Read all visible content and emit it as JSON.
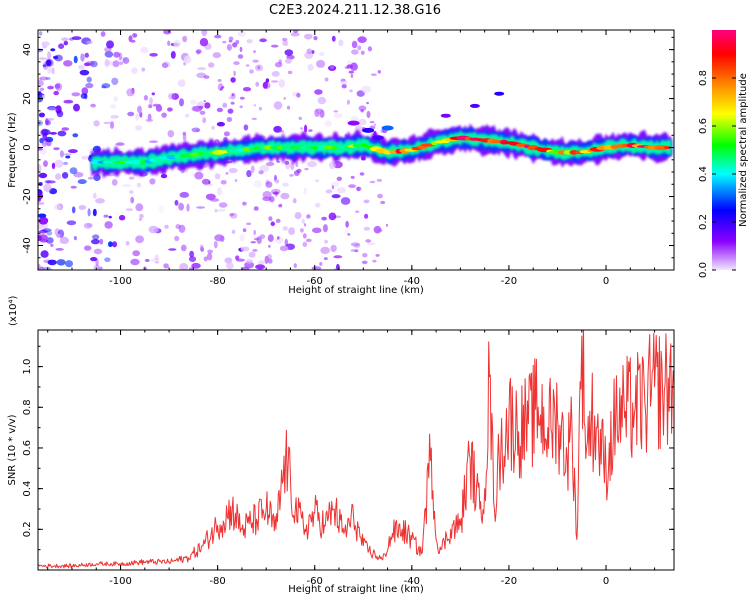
{
  "figure": {
    "title": "C2E3.2024.211.12.38.G16"
  },
  "chart_data": [
    {
      "type": "heatmap",
      "title": "C2E3.2024.211.12.38.G16",
      "xlabel": "Height of straight line (km)",
      "ylabel": "Frequency (Hz)",
      "xlim": [
        -117,
        14
      ],
      "ylim": [
        -50,
        48
      ],
      "x_ticks": [
        -100,
        -80,
        -60,
        -40,
        -20,
        0
      ],
      "y_ticks": [
        -40,
        -20,
        0,
        20,
        40
      ],
      "colorbar": {
        "label": "Normalized spectral amplitude",
        "range": [
          0,
          1
        ],
        "ticks": [
          0.0,
          0.2,
          0.4,
          0.6,
          0.8
        ],
        "tick_labels": [
          "0.0",
          "0.2",
          "0.4",
          "0.6",
          "0.8"
        ],
        "colormap": [
          "#f2e6ff",
          "#8a00ff",
          "#0000ff",
          "#00ffff",
          "#00ff00",
          "#ffff00",
          "#ff8000",
          "#ff0000",
          "#ff0080"
        ]
      },
      "ridge": {
        "description_points_height_km": [
          -105,
          -100,
          -95,
          -90,
          -85,
          -80,
          -75,
          -70,
          -65,
          -60,
          -55,
          -50,
          -45,
          -40,
          -35,
          -30,
          -25,
          -20,
          -15,
          -10,
          -5,
          0,
          5,
          10,
          13
        ],
        "frequency_hz": [
          -6,
          -6,
          -6,
          -4,
          -3,
          -2,
          -1,
          0,
          0,
          0,
          0,
          1,
          -2,
          -1,
          2,
          4,
          3,
          2,
          0,
          -2,
          -2,
          0,
          1,
          0,
          0
        ],
        "amplitude": [
          0.4,
          0.5,
          0.45,
          0.4,
          0.5,
          0.6,
          0.5,
          0.55,
          0.5,
          0.45,
          0.55,
          0.6,
          0.85,
          0.8,
          0.75,
          0.9,
          0.85,
          0.9,
          0.95,
          0.7,
          0.8,
          0.9,
          0.85,
          0.95,
          0.9
        ]
      },
      "side_feature": {
        "height_km": [
          -33,
          -27,
          -22
        ],
        "frequency_hz": [
          13,
          17,
          22
        ]
      }
    },
    {
      "type": "line",
      "xlabel": "Height of straight line (km)",
      "ylabel": "SNR (10 * v/v)",
      "y_multiplier": "(x10⁴)",
      "xlim": [
        -117,
        14
      ],
      "ylim": [
        0,
        1.18
      ],
      "x_ticks": [
        -100,
        -80,
        -60,
        -40,
        -20,
        0
      ],
      "y_ticks": [
        0.2,
        0.4,
        0.6,
        0.8,
        1.0
      ],
      "y_tick_labels": [
        "0.2",
        "0.4",
        "0.6",
        "0.8",
        "1.0"
      ],
      "color": "#ee3333",
      "series": [
        {
          "x": [
            -117,
            -110,
            -105,
            -100,
            -95,
            -90,
            -86,
            -83,
            -80,
            -77,
            -75,
            -72,
            -70,
            -68,
            -66,
            -64,
            -62,
            -60,
            -58,
            -56,
            -54,
            -52,
            -50,
            -48,
            -46,
            -44,
            -42,
            -40,
            -38,
            -36,
            -35,
            -34,
            -32,
            -30,
            -28,
            -26,
            -25,
            -24,
            -23,
            -22,
            -20,
            -18,
            -16,
            -14,
            -12,
            -10,
            -8,
            -7,
            -6,
            -5,
            -4,
            -3,
            -2,
            0,
            2,
            4,
            6,
            8,
            10,
            12,
            14
          ],
          "y": [
            0.02,
            0.02,
            0.03,
            0.03,
            0.04,
            0.04,
            0.06,
            0.12,
            0.22,
            0.3,
            0.2,
            0.25,
            0.3,
            0.2,
            0.55,
            0.3,
            0.2,
            0.28,
            0.22,
            0.3,
            0.18,
            0.26,
            0.12,
            0.08,
            0.05,
            0.18,
            0.2,
            0.15,
            0.08,
            0.6,
            0.15,
            0.1,
            0.2,
            0.22,
            0.55,
            0.3,
            0.4,
            0.95,
            0.3,
            0.55,
            0.75,
            0.68,
            0.72,
            0.8,
            0.7,
            0.75,
            0.55,
            0.7,
            0.15,
            1.15,
            0.6,
            0.75,
            0.7,
            0.5,
            0.75,
            0.78,
            0.8,
            0.82,
            0.9,
            0.88,
            0.92
          ]
        }
      ]
    }
  ]
}
